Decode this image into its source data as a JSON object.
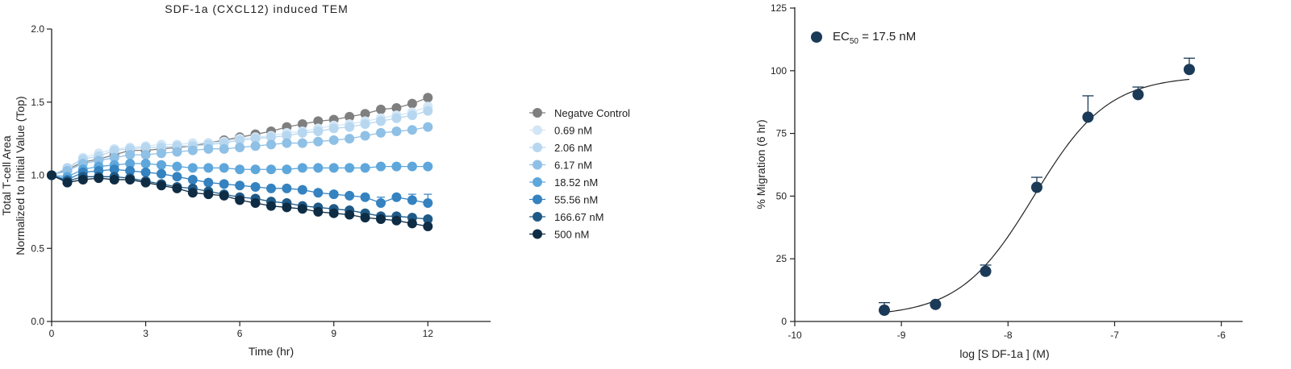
{
  "chart_data": [
    {
      "type": "line",
      "title": "SDF-1a  (CXCL12) induced TEM",
      "xlabel": "Time (hr)",
      "ylabel": "Total  T-cell Area",
      "ylabel2": "Normalized to Initial  Value (Top)",
      "xlim": [
        0,
        14
      ],
      "ylim": [
        0,
        2.0
      ],
      "xticks": [
        "0",
        "3",
        "6",
        "9",
        "12"
      ],
      "yticks": [
        "0.0",
        "0.5",
        "1.0",
        "1.5",
        "2.0"
      ],
      "legend_position": "right",
      "x": [
        0,
        0.5,
        1,
        1.5,
        2,
        2.5,
        3,
        3.5,
        4,
        4.5,
        5,
        5.5,
        6,
        6.5,
        7,
        7.5,
        8,
        8.5,
        9,
        9.5,
        10,
        10.5,
        11,
        11.5,
        12
      ],
      "series": [
        {
          "name": "Negatve Control",
          "color": "#7f7f7f",
          "values": [
            1.0,
            1.04,
            1.09,
            1.11,
            1.14,
            1.17,
            1.17,
            1.18,
            1.19,
            1.2,
            1.22,
            1.24,
            1.26,
            1.28,
            1.3,
            1.33,
            1.35,
            1.37,
            1.38,
            1.4,
            1.42,
            1.45,
            1.46,
            1.49,
            1.53
          ]
        },
        {
          "name": "0.69 nM",
          "color": "#d2e6f6",
          "values": [
            1.0,
            1.05,
            1.12,
            1.15,
            1.18,
            1.19,
            1.2,
            1.21,
            1.21,
            1.22,
            1.22,
            1.23,
            1.25,
            1.26,
            1.27,
            1.29,
            1.3,
            1.32,
            1.34,
            1.35,
            1.37,
            1.39,
            1.41,
            1.43,
            1.47
          ]
        },
        {
          "name": "2.06 nM",
          "color": "#b7d7f0",
          "values": [
            1.0,
            1.05,
            1.11,
            1.13,
            1.17,
            1.18,
            1.19,
            1.19,
            1.2,
            1.2,
            1.21,
            1.22,
            1.24,
            1.25,
            1.26,
            1.27,
            1.29,
            1.3,
            1.32,
            1.33,
            1.35,
            1.37,
            1.39,
            1.41,
            1.44
          ]
        },
        {
          "name": "6.17 nM",
          "color": "#8fc0e6",
          "values": [
            1.0,
            1.03,
            1.08,
            1.1,
            1.12,
            1.14,
            1.14,
            1.15,
            1.16,
            1.17,
            1.18,
            1.18,
            1.19,
            1.2,
            1.21,
            1.22,
            1.22,
            1.23,
            1.24,
            1.25,
            1.27,
            1.29,
            1.3,
            1.31,
            1.33
          ]
        },
        {
          "name": "18.52 nM",
          "color": "#5ea7dc",
          "values": [
            1.0,
            0.99,
            1.04,
            1.06,
            1.07,
            1.08,
            1.08,
            1.07,
            1.06,
            1.05,
            1.05,
            1.05,
            1.04,
            1.04,
            1.04,
            1.04,
            1.05,
            1.05,
            1.05,
            1.05,
            1.05,
            1.06,
            1.06,
            1.06,
            1.06
          ]
        },
        {
          "name": "55.56 nM",
          "color": "#3582c0",
          "values": [
            1.0,
            0.97,
            1.02,
            1.03,
            1.04,
            1.03,
            1.02,
            1.01,
            0.99,
            0.97,
            0.95,
            0.94,
            0.93,
            0.92,
            0.91,
            0.91,
            0.9,
            0.88,
            0.87,
            0.86,
            0.85,
            0.81,
            0.85,
            0.83,
            0.81
          ],
          "errors": [
            0,
            0,
            0,
            0,
            0,
            0,
            0,
            0,
            0,
            0,
            0,
            0,
            0,
            0,
            0,
            0,
            0,
            0,
            0,
            0,
            0,
            0.04,
            0,
            0.04,
            0.06
          ]
        },
        {
          "name": "166.67 nM",
          "color": "#1f5a87",
          "values": [
            1.0,
            0.96,
            0.99,
            0.99,
            0.99,
            0.98,
            0.96,
            0.94,
            0.92,
            0.91,
            0.89,
            0.87,
            0.85,
            0.84,
            0.82,
            0.81,
            0.79,
            0.78,
            0.77,
            0.76,
            0.74,
            0.72,
            0.72,
            0.71,
            0.7
          ]
        },
        {
          "name": "500 nM",
          "color": "#0f2c45",
          "values": [
            1.0,
            0.95,
            0.97,
            0.98,
            0.97,
            0.97,
            0.95,
            0.93,
            0.91,
            0.88,
            0.87,
            0.86,
            0.83,
            0.81,
            0.79,
            0.78,
            0.77,
            0.75,
            0.74,
            0.73,
            0.71,
            0.7,
            0.69,
            0.67,
            0.65
          ]
        }
      ]
    },
    {
      "type": "scatter",
      "title": "",
      "xlabel": "log [S DF-1a ] (M)",
      "ylabel": "% Migration (6 hr)",
      "xlim": [
        -10,
        -5.8
      ],
      "ylim": [
        0,
        125
      ],
      "xticks": [
        "-10",
        "-9",
        "-8",
        "-7",
        "-6"
      ],
      "yticks": [
        "0",
        "25",
        "50",
        "75",
        "100",
        "125"
      ],
      "legend": {
        "label": "EC",
        "subscript": "50",
        "value": " = 17.5 nM",
        "position": "top-left"
      },
      "color": "#1b3a57",
      "x": [
        -9.16,
        -8.68,
        -8.21,
        -7.73,
        -7.25,
        -6.78,
        -6.3
      ],
      "y": [
        4.5,
        6.8,
        20.0,
        53.5,
        81.5,
        90.5,
        100.5
      ],
      "errors": [
        3.0,
        0.0,
        2.5,
        4.0,
        8.5,
        3.0,
        4.5
      ],
      "fit": {
        "type": "sigmoid",
        "bottom": 2.0,
        "top": 98.0,
        "logEC50": -7.757,
        "hill": 1.25
      }
    }
  ]
}
